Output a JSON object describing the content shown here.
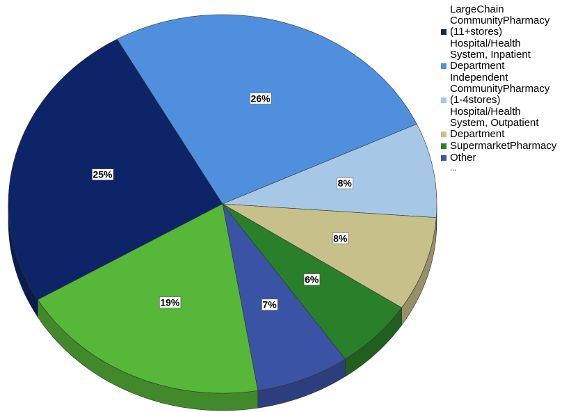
{
  "chart_data": {
    "type": "pie",
    "categories": [
      "LargeChain CommunityPharmacy (11+stores)",
      "Hospital/Health System, Inpatient Department",
      "Independent CommunityPharmacy (1-4stores)",
      "Hospital/Health System, Outpatient Department",
      "SupermarketPharmacy",
      "Other",
      null
    ],
    "series": [
      {
        "values": [
          25,
          26,
          8,
          8,
          6,
          7,
          19
        ],
        "value_labels": [
          "25%",
          "26%",
          "8%",
          "8%",
          "6%",
          "7%",
          "19%"
        ],
        "colors": [
          "#0d2568",
          "#4f8fde",
          "#a7c7e7",
          "#c8c08a",
          "#2a7f2a",
          "#3a53a4",
          "#56b738"
        ]
      }
    ],
    "legend_more": "...",
    "legend": "top-right"
  }
}
